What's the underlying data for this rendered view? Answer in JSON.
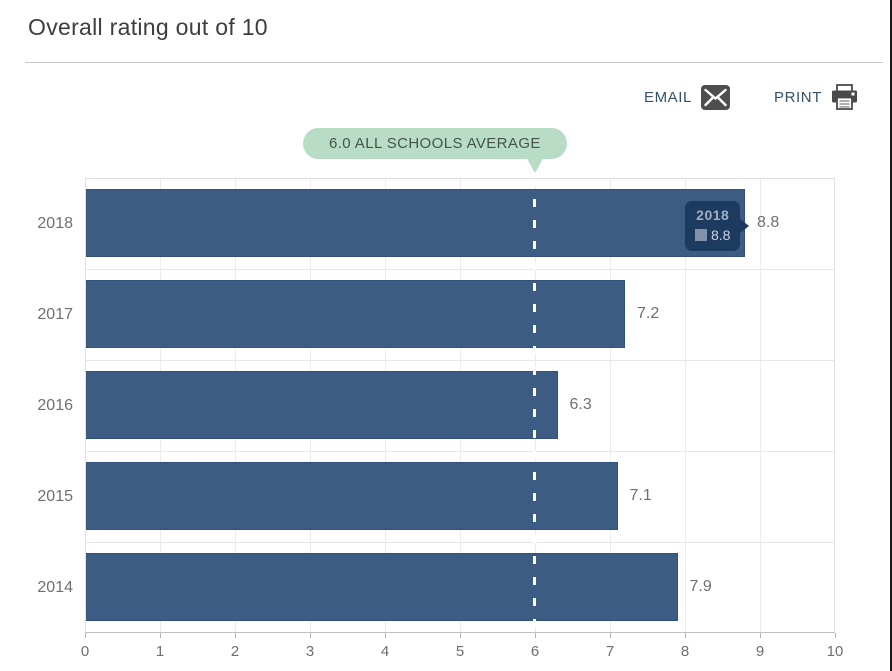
{
  "header": {
    "title": "Overall rating out of 10"
  },
  "toolbar": {
    "email_label": "EMAIL",
    "print_label": "PRINT"
  },
  "annotation": {
    "label": "6.0 ALL SCHOOLS AVERAGE"
  },
  "tooltip": {
    "title": "2018",
    "value": "8.8"
  },
  "chart_data": {
    "type": "bar",
    "orientation": "horizontal",
    "title": "Overall rating out of 10",
    "categories": [
      "2018",
      "2017",
      "2016",
      "2015",
      "2014"
    ],
    "values": [
      8.8,
      7.2,
      6.3,
      7.1,
      7.9
    ],
    "value_labels": [
      "8.8",
      "7.2",
      "6.3",
      "7.1",
      "7.9"
    ],
    "xlabel": "",
    "ylabel": "",
    "xlim": [
      0,
      10
    ],
    "x_ticks": [
      "0",
      "1",
      "2",
      "3",
      "4",
      "5",
      "6",
      "7",
      "8",
      "9",
      "10"
    ],
    "grid": true,
    "legend": "none",
    "reference_line": {
      "value": 6.0,
      "label": "6.0 ALL SCHOOLS AVERAGE"
    },
    "tooltip_shown": {
      "category": "2018",
      "value": "8.8"
    },
    "bar_color": "#3d5c84"
  },
  "colors": {
    "bar": "#3d5c84",
    "bar_edge": "#31507a",
    "tooltip_bg": "#1d3a5f",
    "tooltip_title_text": "#9fafc4",
    "tooltip_swatch": "#8193aa",
    "annotation_bg": "#b9dcc6",
    "annotation_text": "#44544b",
    "action_text": "#355069",
    "icon_dark": "#4e4e4e",
    "axis_text": "#6f6f6f",
    "grid_line": "#ececec",
    "average_dash": "#ffffff"
  }
}
